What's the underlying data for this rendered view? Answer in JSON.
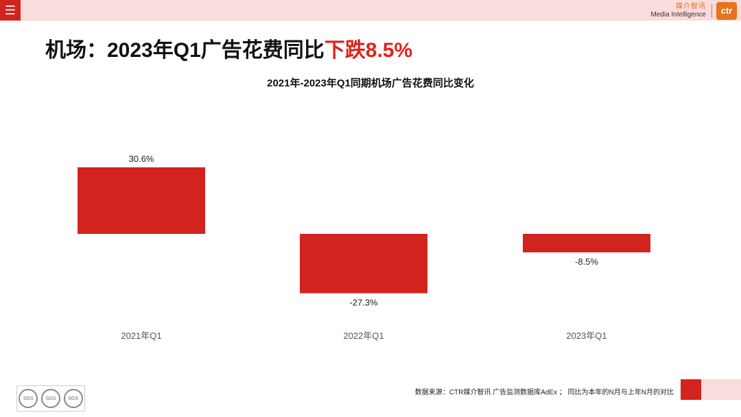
{
  "header": {
    "menu_icon": "hamburger-menu-icon",
    "logo_cn": "媒介智讯",
    "logo_en": "Media Intelligence",
    "logo_badge": "ctr"
  },
  "headline": {
    "prefix": "机场：2023年Q1广告花费同比",
    "highlight": "下跌8.5%"
  },
  "chart_data": {
    "type": "bar",
    "title": "2021年-2023年Q1同期机场广告花费同比变化",
    "categories": [
      "2021年Q1",
      "2022年Q1",
      "2023年Q1"
    ],
    "values": [
      30.6,
      -27.3,
      -8.5
    ],
    "value_labels": [
      "30.6%",
      "-27.3%",
      "-8.5%"
    ],
    "unit": "%",
    "color": "#d2231e",
    "grid": false,
    "legend": "none"
  },
  "footer": {
    "source": "数据来源：CTR媒介智讯 广告监测数据库AdEx ；  同比为本年的N月与上年N月的对比",
    "cert_label": "SGS"
  }
}
